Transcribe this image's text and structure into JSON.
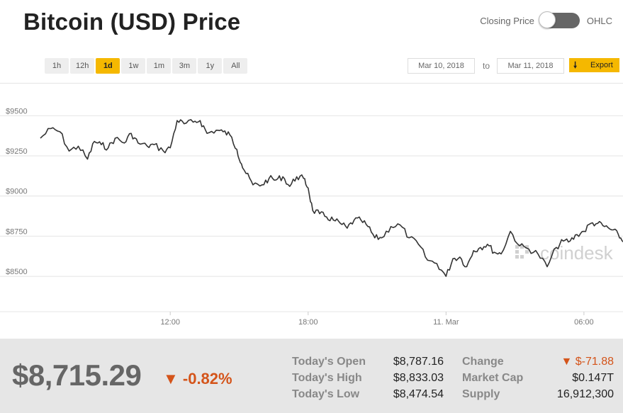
{
  "title": "Bitcoin (USD) Price",
  "toggle": {
    "left_label": "Closing Price",
    "right_label": "OHLC"
  },
  "ranges": [
    "1h",
    "12h",
    "1d",
    "1w",
    "1m",
    "3m",
    "1y",
    "All"
  ],
  "active_range": "1d",
  "date_from": "Mar 10, 2018",
  "to_label": "to",
  "date_to": "Mar 11, 2018",
  "export_label": "Export",
  "watermark": "coindesk",
  "chart_data": {
    "type": "line",
    "y_ticks": [
      "$9500",
      "$9250",
      "$9000",
      "$8750",
      "$8500"
    ],
    "y_tick_values": [
      9500,
      9250,
      9000,
      8750,
      8500
    ],
    "x_ticks": [
      "12:00",
      "18:00",
      "11. Mar",
      "06:00"
    ],
    "x_tick_hours": [
      12,
      18,
      24,
      30
    ],
    "x_range_hours": [
      6.35,
      31.7
    ],
    "ylim": [
      8280,
      9700
    ],
    "grid": true,
    "series": [
      {
        "x": [
          6.35,
          6.8,
          7.2,
          7.6,
          8.0,
          8.4,
          8.7,
          9.0,
          9.3,
          9.6,
          10.0,
          10.3,
          10.6,
          11.0,
          11.3,
          11.7,
          12.0,
          12.3,
          12.6,
          13.0,
          13.3,
          13.6,
          14.0,
          14.3,
          14.6,
          14.9,
          15.1,
          15.3,
          15.6,
          16.0,
          16.3,
          16.6,
          16.9,
          17.2,
          17.5,
          17.8,
          18.0,
          18.2,
          18.5,
          18.8,
          19.1,
          19.4,
          19.7,
          20.0,
          20.3,
          20.6,
          20.9,
          21.2,
          21.6,
          22.0,
          22.4,
          22.8,
          23.2,
          23.6,
          24.0,
          24.3,
          24.6,
          24.9,
          25.2,
          25.5,
          25.8,
          26.1,
          26.4,
          26.8,
          27.2,
          27.6,
          28.0,
          28.4,
          28.8,
          29.1,
          29.4,
          29.7,
          30.0,
          30.3,
          30.6,
          30.9,
          31.2,
          31.5,
          31.7
        ],
        "y": [
          9360,
          9420,
          9400,
          9280,
          9310,
          9230,
          9340,
          9320,
          9300,
          9360,
          9330,
          9390,
          9330,
          9310,
          9320,
          9280,
          9300,
          9470,
          9450,
          9460,
          9470,
          9390,
          9410,
          9400,
          9380,
          9290,
          9200,
          9140,
          9070,
          9070,
          9110,
          9100,
          9120,
          9060,
          9120,
          9110,
          9050,
          8910,
          8890,
          8870,
          8850,
          8830,
          8800,
          8850,
          8850,
          8810,
          8740,
          8740,
          8810,
          8820,
          8740,
          8700,
          8600,
          8580,
          8500,
          8610,
          8620,
          8560,
          8660,
          8680,
          8700,
          8650,
          8640,
          8780,
          8690,
          8670,
          8640,
          8560,
          8680,
          8720,
          8720,
          8760,
          8780,
          8830,
          8830,
          8810,
          8790,
          8760,
          8715
        ]
      }
    ]
  },
  "summary": {
    "price": "$8,715.29",
    "change_pct": "▼ -0.82%",
    "today_open_label": "Today's Open",
    "today_open": "$8,787.16",
    "today_high_label": "Today's High",
    "today_high": "$8,833.03",
    "today_low_label": "Today's Low",
    "today_low": "$8,474.54",
    "change_label": "Change",
    "change": "▼ $-71.88",
    "market_cap_label": "Market Cap",
    "market_cap": "$0.147T",
    "supply_label": "Supply",
    "supply": "16,912,300"
  },
  "colors": {
    "accent": "#f5b800",
    "negative": "#d4541a",
    "line": "#333333"
  }
}
